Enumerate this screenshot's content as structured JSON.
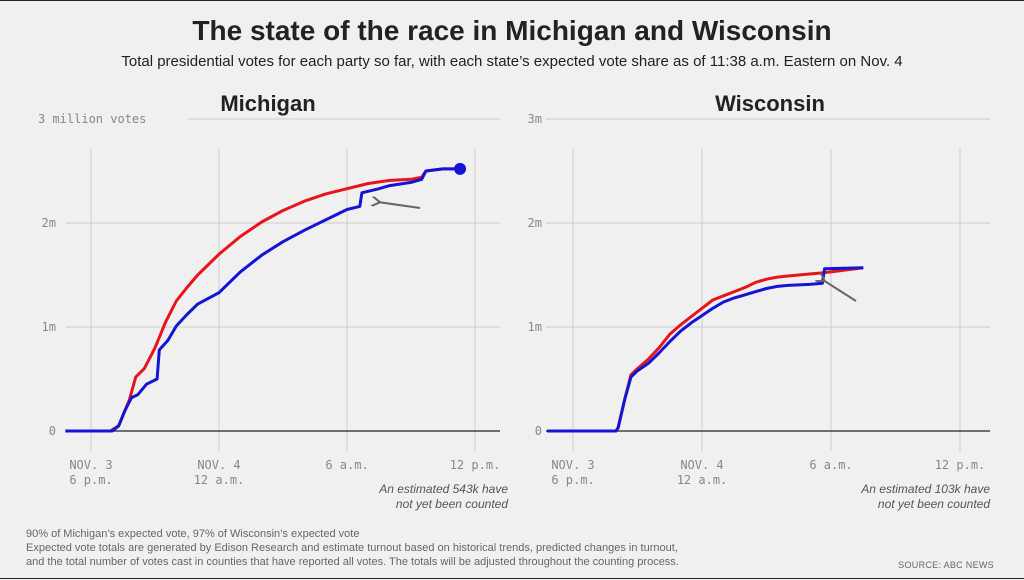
{
  "title": "The state of the race in Michigan and Wisconsin",
  "subtitle": "Total presidential votes for each party so far, with each state’s expected vote share as of 11:38 a.m. Eastern on Nov. 4",
  "footer_lines": [
    "90% of Michigan’s expected vote, 97% of Wisconsin’s expected vote",
    "Expected vote totals are generated by Edison Research and estimate turnout based on historical trends, predicted changes in turnout,",
    "and the total number of votes cast in counties that have reported all votes. The totals will be adjusted throughout the counting process."
  ],
  "source": "SOURCE: ABC NEWS",
  "colors": {
    "red": "#e8141c",
    "blue": "#1414d4",
    "grid": "#cccccc",
    "baseline": "#222222",
    "arrow": "#666666"
  },
  "chart_data": [
    {
      "type": "line",
      "title": "Michigan",
      "ylim": [
        0,
        3000000
      ],
      "xlim": [
        -2,
        19
      ],
      "y_ticks": [
        {
          "v": 0,
          "label": "0"
        },
        {
          "v": 1000000,
          "label": "1m"
        },
        {
          "v": 2000000,
          "label": "2m"
        },
        {
          "v": 3000000,
          "label": "3 million votes"
        }
      ],
      "x_ticks": [
        {
          "v": 0,
          "line1": "NOV. 3",
          "line2": "6 p.m."
        },
        {
          "v": 6,
          "line1": "NOV. 4",
          "line2": "12 a.m."
        },
        {
          "v": 12,
          "line1": "6 a.m.",
          "line2": ""
        },
        {
          "v": 18,
          "line1": "12 p.m.",
          "line2": ""
        }
      ],
      "annotation": [
        "An estimated 543k have",
        "not yet been counted"
      ],
      "series": [
        {
          "color": "red",
          "points": [
            [
              -1.2,
              0
            ],
            [
              0.9,
              0
            ],
            [
              1.3,
              50000
            ],
            [
              1.6,
              200000
            ],
            [
              1.8,
              300000
            ],
            [
              2.1,
              520000
            ],
            [
              2.5,
              600000
            ],
            [
              3,
              800000
            ],
            [
              3.5,
              1050000
            ],
            [
              4,
              1250000
            ],
            [
              4.5,
              1380000
            ],
            [
              5,
              1500000
            ],
            [
              6,
              1700000
            ],
            [
              7,
              1870000
            ],
            [
              8,
              2010000
            ],
            [
              9,
              2120000
            ],
            [
              10,
              2210000
            ],
            [
              11,
              2280000
            ],
            [
              12,
              2330000
            ],
            [
              13,
              2380000
            ],
            [
              14,
              2410000
            ],
            [
              15,
              2420000
            ],
            [
              15.5,
              2440000
            ],
            [
              15.7,
              2500000
            ],
            [
              16.5,
              2520000
            ],
            [
              17.3,
              2520000
            ]
          ]
        },
        {
          "color": "blue",
          "points": [
            [
              -1.2,
              0
            ],
            [
              1,
              0
            ],
            [
              1.3,
              50000
            ],
            [
              1.6,
              200000
            ],
            [
              1.9,
              320000
            ],
            [
              2.2,
              350000
            ],
            [
              2.6,
              450000
            ],
            [
              3.1,
              500000
            ],
            [
              3.2,
              780000
            ],
            [
              3.6,
              870000
            ],
            [
              4,
              1010000
            ],
            [
              4.5,
              1120000
            ],
            [
              5,
              1220000
            ],
            [
              6,
              1330000
            ],
            [
              7,
              1530000
            ],
            [
              8,
              1690000
            ],
            [
              9,
              1820000
            ],
            [
              10,
              1930000
            ],
            [
              11,
              2030000
            ],
            [
              12,
              2130000
            ],
            [
              12.6,
              2160000
            ],
            [
              12.7,
              2290000
            ],
            [
              13.5,
              2330000
            ],
            [
              14,
              2360000
            ],
            [
              15,
              2390000
            ],
            [
              15.5,
              2420000
            ],
            [
              15.7,
              2500000
            ],
            [
              16.5,
              2520000
            ],
            [
              17.3,
              2520000
            ]
          ]
        }
      ],
      "end_marker": {
        "x": 17.3,
        "y": 2520000
      }
    },
    {
      "type": "line",
      "title": "Wisconsin",
      "ylim": [
        0,
        3000000
      ],
      "xlim": [
        -2,
        19
      ],
      "y_ticks": [
        {
          "v": 0,
          "label": "0"
        },
        {
          "v": 1000000,
          "label": "1m"
        },
        {
          "v": 2000000,
          "label": "2m"
        },
        {
          "v": 3000000,
          "label": "3m"
        }
      ],
      "x_ticks": [
        {
          "v": 0,
          "line1": "NOV. 3",
          "line2": "6 p.m."
        },
        {
          "v": 6,
          "line1": "NOV. 4",
          "line2": "12 a.m."
        },
        {
          "v": 12,
          "line1": "6 a.m.",
          "line2": ""
        },
        {
          "v": 18,
          "line1": "12 p.m.",
          "line2": ""
        }
      ],
      "annotation": [
        "An estimated 103k have",
        "not yet been counted"
      ],
      "series": [
        {
          "color": "red",
          "points": [
            [
              -1.2,
              0
            ],
            [
              2,
              0
            ],
            [
              2.1,
              30000
            ],
            [
              2.4,
              300000
            ],
            [
              2.7,
              540000
            ],
            [
              3,
              600000
            ],
            [
              3.5,
              690000
            ],
            [
              4,
              800000
            ],
            [
              4.5,
              930000
            ],
            [
              5,
              1020000
            ],
            [
              5.5,
              1100000
            ],
            [
              6,
              1180000
            ],
            [
              6.5,
              1260000
            ],
            [
              7,
              1300000
            ],
            [
              7.5,
              1340000
            ],
            [
              8,
              1380000
            ],
            [
              8.5,
              1430000
            ],
            [
              9,
              1460000
            ],
            [
              9.5,
              1480000
            ],
            [
              10,
              1490000
            ],
            [
              11,
              1510000
            ],
            [
              11.6,
              1520000
            ],
            [
              12,
              1530000
            ],
            [
              13.5,
              1570000
            ]
          ]
        },
        {
          "color": "blue",
          "points": [
            [
              -1.2,
              0
            ],
            [
              2,
              0
            ],
            [
              2.1,
              30000
            ],
            [
              2.4,
              300000
            ],
            [
              2.7,
              520000
            ],
            [
              3,
              580000
            ],
            [
              3.5,
              650000
            ],
            [
              4,
              750000
            ],
            [
              4.5,
              860000
            ],
            [
              5,
              960000
            ],
            [
              5.5,
              1040000
            ],
            [
              6,
              1110000
            ],
            [
              6.5,
              1180000
            ],
            [
              7,
              1240000
            ],
            [
              7.5,
              1280000
            ],
            [
              8,
              1310000
            ],
            [
              8.5,
              1340000
            ],
            [
              9,
              1370000
            ],
            [
              9.5,
              1390000
            ],
            [
              10,
              1400000
            ],
            [
              11,
              1410000
            ],
            [
              11.6,
              1420000
            ],
            [
              11.7,
              1560000
            ],
            [
              13.5,
              1570000
            ]
          ]
        }
      ]
    }
  ]
}
